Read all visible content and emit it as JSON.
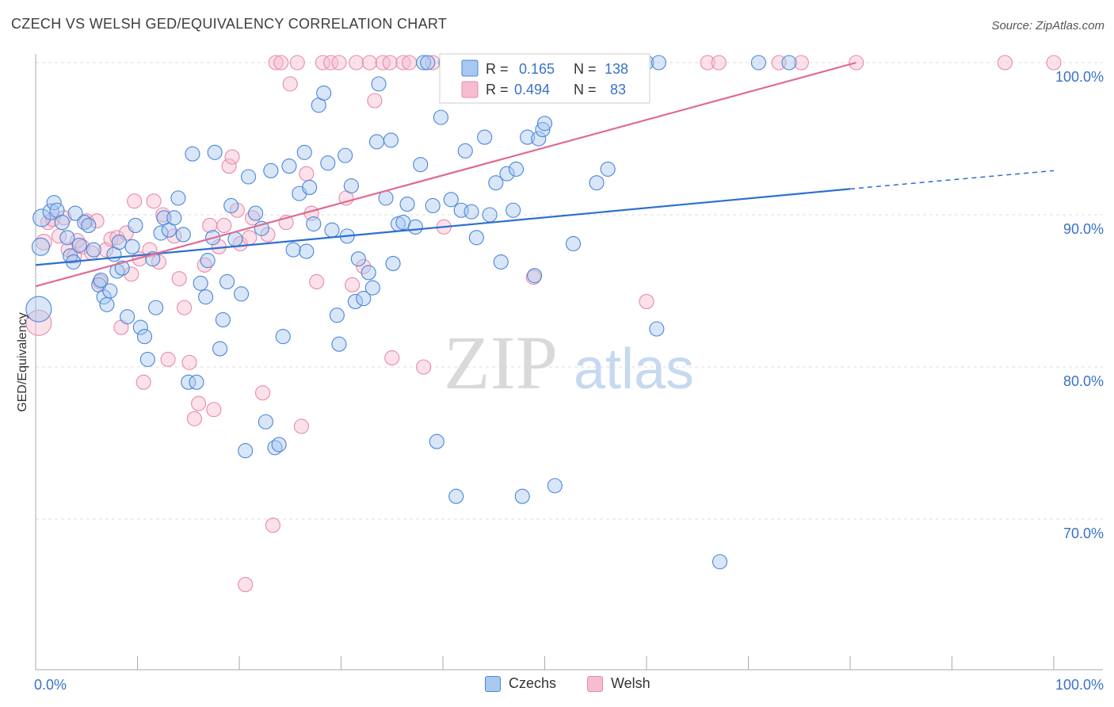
{
  "title": "CZECH VS WELSH GED/EQUIVALENCY CORRELATION CHART",
  "source": "Source: ZipAtlas.com",
  "watermark": {
    "zip": "ZIP",
    "atlas": "atlas"
  },
  "colors": {
    "czech_fill": "#a9c8f0",
    "czech_stroke": "#4a86d8",
    "czech_line": "#2d6fd0",
    "welsh_fill": "#f7bcd0",
    "welsh_stroke": "#e88aa8",
    "welsh_line": "#e06a94",
    "tick_text": "#3a72c6",
    "grid": "#dddddd"
  },
  "legend": {
    "r_label": "R =",
    "n_label": "N =",
    "czech": {
      "r": "0.165",
      "n": "138"
    },
    "welsh": {
      "r": "0.494",
      "n": "83"
    }
  },
  "bottom_legend": {
    "czech": "Czechs",
    "welsh": "Welsh"
  },
  "chart_data": {
    "type": "scatter",
    "title": "CZECH VS WELSH GED/EQUIVALENCY CORRELATION CHART",
    "xlabel": "",
    "ylabel": "GED/Equivalency",
    "xlim": [
      0,
      100
    ],
    "ylim": [
      60,
      101
    ],
    "x_tick_labels": [
      "0.0%",
      "100.0%"
    ],
    "y_ticks": [
      70,
      80,
      90,
      100
    ],
    "y_tick_labels": [
      "70.0%",
      "80.0%",
      "90.0%",
      "100.0%"
    ],
    "grid": true,
    "legend_position": "top-center",
    "series": [
      {
        "name": "Czechs",
        "color": "#4a86d8",
        "trend": {
          "x0": 0,
          "y0": 86.7,
          "x1": 80,
          "y1": 91.7,
          "dashed_to_x": 100,
          "dashed_to_y": 92.9
        },
        "points": [
          [
            0.3,
            83.8,
            16
          ],
          [
            0.5,
            87.9,
            11
          ],
          [
            0.6,
            89.8,
            11
          ],
          [
            1.5,
            90.2,
            10
          ],
          [
            1.8,
            90.8,
            9
          ],
          [
            2.1,
            90.3,
            9
          ],
          [
            2.6,
            89.5,
            9
          ],
          [
            3.1,
            88.5,
            9
          ],
          [
            3.4,
            87.3,
            9
          ],
          [
            3.7,
            86.9,
            9
          ],
          [
            3.9,
            90.1,
            9
          ],
          [
            4.3,
            88.0,
            9
          ],
          [
            4.8,
            89.5,
            9
          ],
          [
            5.2,
            89.3,
            9
          ],
          [
            5.7,
            87.7,
            9
          ],
          [
            6.2,
            85.4,
            9
          ],
          [
            6.4,
            85.7,
            9
          ],
          [
            6.7,
            84.6,
            9
          ],
          [
            7.0,
            84.1,
            9
          ],
          [
            7.3,
            85.0,
            9
          ],
          [
            7.7,
            87.4,
            9
          ],
          [
            8.0,
            86.3,
            9
          ],
          [
            8.2,
            88.2,
            9
          ],
          [
            8.5,
            86.5,
            9
          ],
          [
            9.0,
            83.3,
            9
          ],
          [
            9.5,
            87.9,
            9
          ],
          [
            9.8,
            89.3,
            9
          ],
          [
            10.3,
            82.6,
            9
          ],
          [
            10.7,
            82.0,
            9
          ],
          [
            11.0,
            80.5,
            9
          ],
          [
            11.5,
            87.1,
            9
          ],
          [
            11.8,
            83.9,
            9
          ],
          [
            12.3,
            88.8,
            9
          ],
          [
            12.6,
            89.8,
            9
          ],
          [
            13.1,
            89.0,
            9
          ],
          [
            13.6,
            89.8,
            9
          ],
          [
            14.0,
            91.1,
            9
          ],
          [
            14.5,
            88.7,
            9
          ],
          [
            15.0,
            79.0,
            9
          ],
          [
            15.4,
            94.0,
            9
          ],
          [
            15.8,
            79.0,
            9
          ],
          [
            16.2,
            85.5,
            9
          ],
          [
            16.7,
            84.6,
            9
          ],
          [
            16.9,
            87.0,
            9
          ],
          [
            17.4,
            88.5,
            9
          ],
          [
            17.6,
            94.1,
            9
          ],
          [
            18.1,
            81.2,
            9
          ],
          [
            18.4,
            83.1,
            9
          ],
          [
            18.8,
            85.6,
            9
          ],
          [
            19.2,
            90.6,
            9
          ],
          [
            19.6,
            88.4,
            9
          ],
          [
            20.2,
            84.8,
            9
          ],
          [
            20.6,
            74.5,
            9
          ],
          [
            20.9,
            92.5,
            9
          ],
          [
            21.6,
            90.1,
            9
          ],
          [
            22.2,
            89.1,
            9
          ],
          [
            22.6,
            76.4,
            9
          ],
          [
            23.1,
            92.9,
            9
          ],
          [
            23.5,
            74.7,
            9
          ],
          [
            23.9,
            74.9,
            9
          ],
          [
            24.3,
            82.0,
            9
          ],
          [
            24.9,
            93.2,
            9
          ],
          [
            25.3,
            87.7,
            9
          ],
          [
            25.9,
            91.4,
            9
          ],
          [
            26.4,
            94.1,
            9
          ],
          [
            26.6,
            87.6,
            9
          ],
          [
            26.9,
            91.8,
            9
          ],
          [
            27.3,
            89.4,
            9
          ],
          [
            27.8,
            97.2,
            9
          ],
          [
            28.3,
            98.0,
            9
          ],
          [
            28.7,
            93.4,
            9
          ],
          [
            29.1,
            89.0,
            9
          ],
          [
            29.6,
            83.4,
            9
          ],
          [
            29.8,
            81.5,
            9
          ],
          [
            30.4,
            93.9,
            9
          ],
          [
            30.6,
            88.6,
            9
          ],
          [
            31.0,
            91.9,
            9
          ],
          [
            31.4,
            84.3,
            9
          ],
          [
            31.7,
            87.1,
            9
          ],
          [
            32.2,
            84.5,
            9
          ],
          [
            32.7,
            86.2,
            9
          ],
          [
            33.1,
            85.2,
            9
          ],
          [
            33.5,
            94.8,
            9
          ],
          [
            33.7,
            98.6,
            9
          ],
          [
            34.4,
            91.1,
            9
          ],
          [
            34.9,
            94.9,
            9
          ],
          [
            35.1,
            86.8,
            9
          ],
          [
            35.6,
            89.4,
            9
          ],
          [
            36.1,
            89.5,
            9
          ],
          [
            36.5,
            90.7,
            9
          ],
          [
            37.3,
            89.2,
            9
          ],
          [
            37.8,
            93.3,
            9
          ],
          [
            38.1,
            100.0,
            9
          ],
          [
            38.5,
            100.0,
            9
          ],
          [
            39.0,
            90.6,
            9
          ],
          [
            39.4,
            75.1,
            9
          ],
          [
            39.8,
            96.4,
            9
          ],
          [
            40.3,
            100.0,
            9
          ],
          [
            40.8,
            91.0,
            9
          ],
          [
            41.3,
            71.5,
            9
          ],
          [
            41.8,
            90.3,
            9
          ],
          [
            42.2,
            94.2,
            9
          ],
          [
            42.8,
            90.2,
            9
          ],
          [
            43.3,
            88.5,
            9
          ],
          [
            44.1,
            95.1,
            9
          ],
          [
            44.6,
            90.0,
            9
          ],
          [
            45.2,
            92.1,
            9
          ],
          [
            45.7,
            86.9,
            9
          ],
          [
            46.3,
            92.7,
            9
          ],
          [
            46.9,
            90.3,
            9
          ],
          [
            47.2,
            93.0,
            9
          ],
          [
            47.8,
            71.5,
            9
          ],
          [
            48.3,
            95.1,
            9
          ],
          [
            49.0,
            86.0,
            9
          ],
          [
            49.4,
            95.0,
            9
          ],
          [
            49.8,
            95.6,
            9
          ],
          [
            50.0,
            96.0,
            9
          ],
          [
            51.0,
            72.2,
            9
          ],
          [
            52.8,
            88.1,
            9
          ],
          [
            55.1,
            92.1,
            9
          ],
          [
            56.2,
            93.0,
            9
          ],
          [
            60.0,
            100.0,
            9
          ],
          [
            61.2,
            100.0,
            9
          ],
          [
            61.0,
            82.5,
            9
          ],
          [
            67.2,
            67.2,
            9
          ],
          [
            71.0,
            100.0,
            9
          ],
          [
            74.0,
            100.0,
            9
          ],
          [
            58.0,
            100.0,
            9
          ]
        ]
      },
      {
        "name": "Welsh",
        "color": "#e88aa8",
        "trend": {
          "x0": 0,
          "y0": 85.3,
          "x1": 80.6,
          "y1": 100.0
        },
        "points": [
          [
            0.3,
            82.9,
            16
          ],
          [
            0.8,
            88.2,
            10
          ],
          [
            1.2,
            89.5,
            9
          ],
          [
            1.7,
            89.7,
            9
          ],
          [
            2.3,
            88.6,
            9
          ],
          [
            2.8,
            89.8,
            9
          ],
          [
            3.2,
            87.7,
            9
          ],
          [
            3.8,
            87.3,
            9
          ],
          [
            4.1,
            88.3,
            9
          ],
          [
            4.6,
            87.9,
            9
          ],
          [
            5.0,
            89.6,
            9
          ],
          [
            5.5,
            87.5,
            9
          ],
          [
            6.0,
            89.6,
            9
          ],
          [
            6.3,
            85.6,
            9
          ],
          [
            6.9,
            87.7,
            9
          ],
          [
            7.4,
            88.4,
            9
          ],
          [
            8.0,
            88.5,
            9
          ],
          [
            8.4,
            82.6,
            9
          ],
          [
            8.9,
            88.8,
            9
          ],
          [
            9.4,
            86.1,
            9
          ],
          [
            9.7,
            90.9,
            9
          ],
          [
            10.2,
            87.1,
            9
          ],
          [
            10.6,
            79.0,
            9
          ],
          [
            11.2,
            87.7,
            9
          ],
          [
            11.6,
            90.9,
            9
          ],
          [
            12.1,
            86.9,
            9
          ],
          [
            12.5,
            90.0,
            9
          ],
          [
            13.0,
            80.5,
            9
          ],
          [
            13.6,
            88.6,
            9
          ],
          [
            14.1,
            85.8,
            9
          ],
          [
            14.6,
            83.9,
            9
          ],
          [
            15.1,
            80.3,
            9
          ],
          [
            15.6,
            76.6,
            9
          ],
          [
            16.0,
            77.6,
            9
          ],
          [
            16.6,
            86.7,
            9
          ],
          [
            17.1,
            89.3,
            9
          ],
          [
            17.5,
            77.2,
            9
          ],
          [
            18.0,
            87.9,
            9
          ],
          [
            18.5,
            89.3,
            9
          ],
          [
            19.0,
            93.2,
            9
          ],
          [
            19.3,
            93.8,
            9
          ],
          [
            19.8,
            90.3,
            9
          ],
          [
            20.1,
            88.1,
            9
          ],
          [
            20.6,
            65.7,
            9
          ],
          [
            21.0,
            88.5,
            9
          ],
          [
            21.3,
            89.8,
            9
          ],
          [
            22.3,
            78.3,
            9
          ],
          [
            22.8,
            88.7,
            9
          ],
          [
            23.3,
            69.6,
            9
          ],
          [
            23.6,
            100.0,
            9
          ],
          [
            24.1,
            100.0,
            9
          ],
          [
            24.6,
            89.5,
            9
          ],
          [
            25.0,
            98.6,
            9
          ],
          [
            25.7,
            100.0,
            9
          ],
          [
            26.1,
            76.1,
            9
          ],
          [
            26.6,
            92.7,
            9
          ],
          [
            27.1,
            90.1,
            9
          ],
          [
            27.6,
            85.6,
            9
          ],
          [
            28.2,
            100.0,
            9
          ],
          [
            29.0,
            100.0,
            9
          ],
          [
            29.8,
            100.0,
            9
          ],
          [
            30.5,
            91.1,
            9
          ],
          [
            31.1,
            85.4,
            9
          ],
          [
            31.5,
            100.0,
            9
          ],
          [
            32.2,
            86.6,
            9
          ],
          [
            32.8,
            100.0,
            9
          ],
          [
            33.3,
            97.5,
            9
          ],
          [
            34.1,
            100.0,
            9
          ],
          [
            34.8,
            100.0,
            9
          ],
          [
            35.0,
            80.6,
            9
          ],
          [
            36.1,
            100.0,
            9
          ],
          [
            36.7,
            100.0,
            9
          ],
          [
            38.1,
            80.0,
            9
          ],
          [
            39.0,
            100.0,
            9
          ],
          [
            40.1,
            89.2,
            9
          ],
          [
            41.0,
            100.0,
            9
          ],
          [
            43.1,
            100.0,
            9
          ],
          [
            45.1,
            100.0,
            9
          ],
          [
            48.9,
            85.9,
            9
          ],
          [
            54.1,
            100.0,
            9
          ],
          [
            57.1,
            100.0,
            9
          ],
          [
            60.0,
            84.3,
            9
          ],
          [
            66.0,
            100.0,
            9
          ],
          [
            67.1,
            100.0,
            9
          ],
          [
            73.0,
            100.0,
            9
          ],
          [
            75.2,
            100.0,
            9
          ],
          [
            80.6,
            100.0,
            9
          ],
          [
            95.2,
            100.0,
            9
          ],
          [
            100.0,
            100.0,
            9
          ]
        ]
      }
    ]
  }
}
